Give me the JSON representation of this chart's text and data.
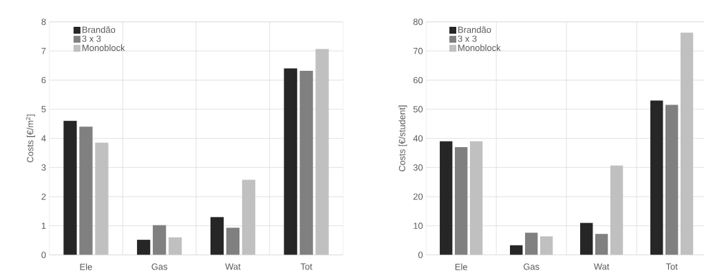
{
  "chart_data": [
    {
      "type": "bar",
      "categories": [
        "Ele",
        "Gas",
        "Wat",
        "Tot"
      ],
      "ylabel": "Costs [€/m$^{2}$]",
      "ylim": [
        0,
        8
      ],
      "yticks": [
        0,
        1,
        2,
        3,
        4,
        5,
        6,
        7,
        8
      ],
      "grid": true,
      "legend": "top left",
      "series": [
        {
          "name": "Brandão",
          "color": "#262626",
          "values": [
            4.6,
            0.52,
            1.3,
            6.4
          ]
        },
        {
          "name": "3 x 3",
          "color": "#808080",
          "values": [
            4.4,
            1.02,
            0.93,
            6.32
          ]
        },
        {
          "name": "Monoblock",
          "color": "#c0c0c0",
          "values": [
            3.85,
            0.6,
            2.58,
            7.07
          ]
        }
      ]
    },
    {
      "type": "bar",
      "categories": [
        "Ele",
        "Gas",
        "Wat",
        "Tot"
      ],
      "ylabel": "Costs [€/student]",
      "ylim": [
        0,
        80
      ],
      "yticks": [
        0,
        10,
        20,
        30,
        40,
        50,
        60,
        70,
        80
      ],
      "grid": true,
      "legend": "top left",
      "series": [
        {
          "name": "Brandão",
          "color": "#262626",
          "values": [
            39,
            3.3,
            11,
            53
          ]
        },
        {
          "name": "3 x 3",
          "color": "#808080",
          "values": [
            37,
            7.6,
            7.2,
            51.5
          ]
        },
        {
          "name": "Monoblock",
          "color": "#c0c0c0",
          "values": [
            39,
            6.4,
            30.7,
            76.3
          ]
        }
      ]
    }
  ]
}
